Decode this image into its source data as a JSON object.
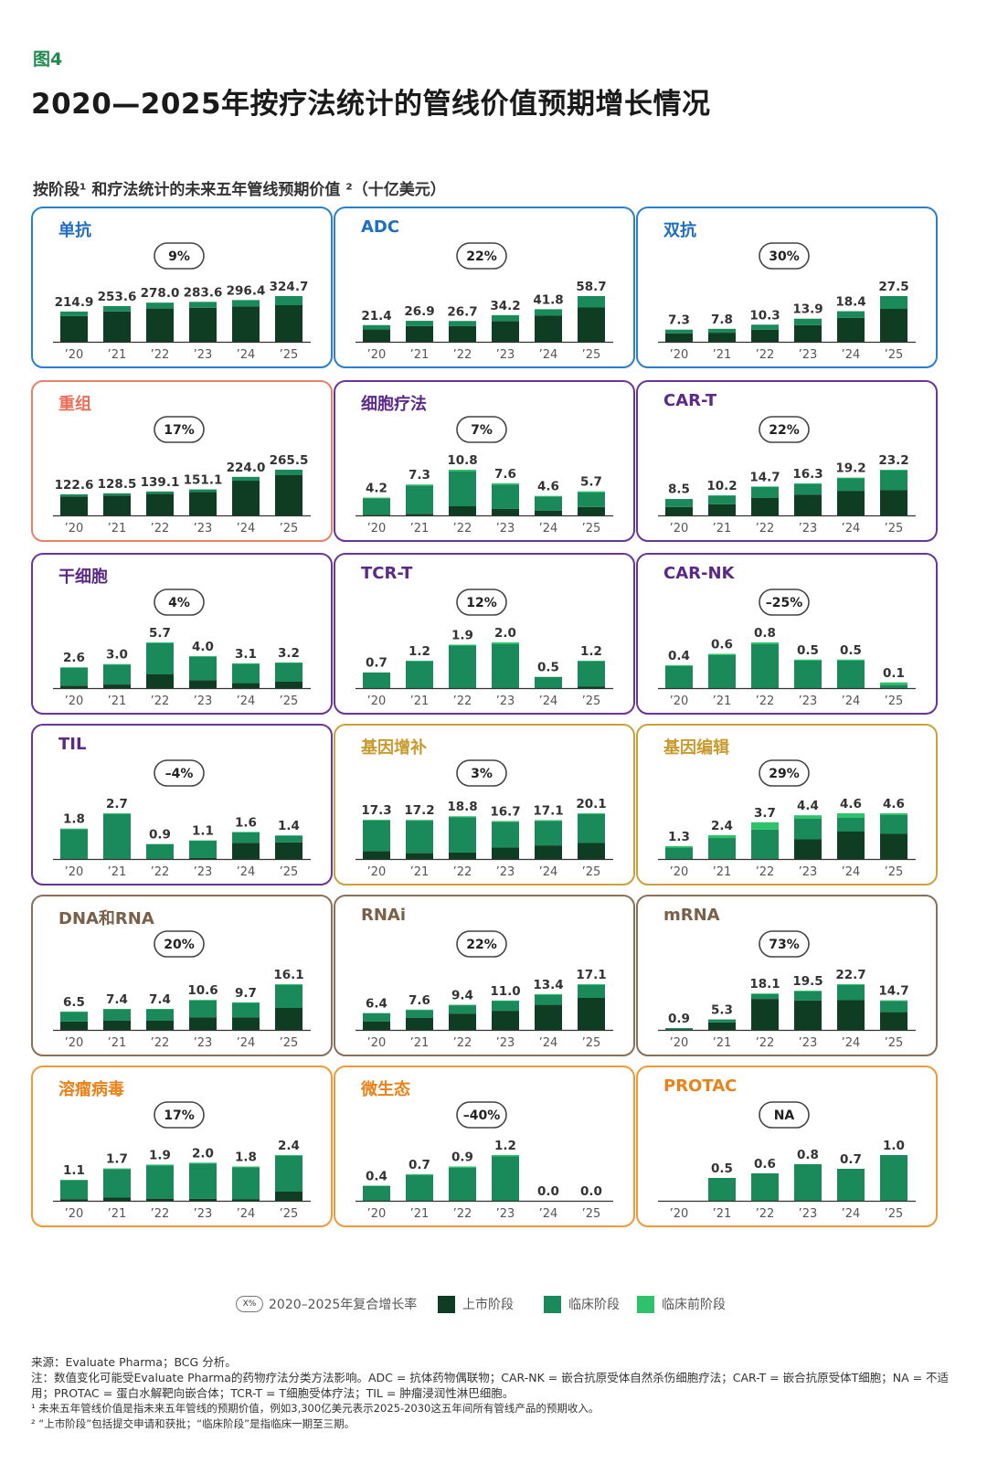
{
  "figure_label": "图4",
  "title": "2020—2025年按疗法统计的管线价值预期增长情况",
  "subtitle": "按阶段¹ 和疗法统计的未来五年管线预期价值 ²（十亿美元）",
  "colors": {
    "marketed": "#0f3d24",
    "clinical": "#1b8a5a",
    "preclinical": "#2ec26a"
  },
  "categories": [
    "’20",
    "’21",
    "’22",
    "’23",
    "’24",
    "’25"
  ],
  "chart_data": [
    {
      "type": "bar",
      "title": "单抗",
      "title_color": "#1f6fbf",
      "border_color": "#2a7fd0",
      "cagr": "9%",
      "values": [
        214.9,
        253.6,
        278.0,
        283.6,
        296.4,
        324.7
      ],
      "labels": [
        "214.9",
        "253.6",
        "278.0",
        "283.6",
        "296.4",
        "324.7"
      ],
      "marketed_share": [
        0.85,
        0.85,
        0.85,
        0.85,
        0.85,
        0.8
      ],
      "clinical_share": [
        0.15,
        0.15,
        0.15,
        0.15,
        0.15,
        0.2
      ]
    },
    {
      "type": "bar",
      "title": "ADC",
      "title_color": "#1f6fbf",
      "border_color": "#2a7fd0",
      "cagr": "22%",
      "values": [
        21.4,
        26.9,
        26.7,
        34.2,
        41.8,
        58.7
      ],
      "labels": [
        "21.4",
        "26.9",
        "26.7",
        "34.2",
        "41.8",
        "58.7"
      ],
      "marketed_share": [
        0.75,
        0.75,
        0.75,
        0.78,
        0.8,
        0.75
      ],
      "clinical_share": [
        0.25,
        0.25,
        0.25,
        0.22,
        0.2,
        0.25
      ]
    },
    {
      "type": "bar",
      "title": "双抗",
      "title_color": "#1f6fbf",
      "border_color": "#2a7fd0",
      "cagr": "30%",
      "values": [
        7.3,
        7.8,
        10.3,
        13.9,
        18.4,
        27.5
      ],
      "labels": [
        "7.3",
        "7.8",
        "10.3",
        "13.9",
        "18.4",
        "27.5"
      ],
      "marketed_share": [
        0.7,
        0.7,
        0.7,
        0.72,
        0.78,
        0.72
      ],
      "clinical_share": [
        0.3,
        0.3,
        0.3,
        0.28,
        0.22,
        0.28
      ]
    },
    {
      "type": "bar",
      "title": "重组",
      "title_color": "#e8705a",
      "border_color": "#e8806a",
      "cagr": "17%",
      "values": [
        122.6,
        128.5,
        139.1,
        151.1,
        224.0,
        265.5
      ],
      "labels": [
        "122.6",
        "128.5",
        "139.1",
        "151.1",
        "224.0",
        "265.5"
      ],
      "marketed_share": [
        0.9,
        0.9,
        0.9,
        0.9,
        0.9,
        0.88
      ],
      "clinical_share": [
        0.1,
        0.1,
        0.1,
        0.1,
        0.1,
        0.12
      ]
    },
    {
      "type": "bar",
      "title": "细胞疗法",
      "title_color": "#5b2a86",
      "border_color": "#6a3596",
      "cagr": "7%",
      "values": [
        4.2,
        7.3,
        10.8,
        7.6,
        4.6,
        5.7
      ],
      "labels": [
        "4.2",
        "7.3",
        "10.8",
        "7.6",
        "4.6",
        "5.7"
      ],
      "marketed_share": [
        0.03,
        0.05,
        0.2,
        0.2,
        0.25,
        0.35
      ],
      "clinical_share": [
        0.94,
        0.92,
        0.76,
        0.76,
        0.71,
        0.6
      ]
    },
    {
      "type": "bar",
      "title": "CAR-T",
      "title_color": "#5b2a86",
      "border_color": "#6a3596",
      "cagr": "22%",
      "values": [
        8.5,
        10.2,
        14.7,
        16.3,
        19.2,
        23.2
      ],
      "labels": [
        "8.5",
        "10.2",
        "14.7",
        "16.3",
        "19.2",
        "23.2"
      ],
      "marketed_share": [
        0.5,
        0.55,
        0.6,
        0.65,
        0.65,
        0.55
      ],
      "clinical_share": [
        0.48,
        0.43,
        0.38,
        0.33,
        0.33,
        0.43
      ]
    },
    {
      "type": "bar",
      "title": "干细胞",
      "title_color": "#5b2a86",
      "border_color": "#6a3596",
      "cagr": "4%",
      "values": [
        2.6,
        3.0,
        5.7,
        4.0,
        3.1,
        3.2
      ],
      "labels": [
        "2.6",
        "3.0",
        "5.7",
        "4.0",
        "3.1",
        "3.2"
      ],
      "marketed_share": [
        0.12,
        0.15,
        0.3,
        0.25,
        0.2,
        0.25
      ],
      "clinical_share": [
        0.86,
        0.83,
        0.68,
        0.73,
        0.78,
        0.73
      ]
    },
    {
      "type": "bar",
      "title": "TCR-T",
      "title_color": "#5b2a86",
      "border_color": "#6a3596",
      "cagr": "12%",
      "values": [
        0.7,
        1.2,
        1.9,
        2.0,
        0.5,
        1.2
      ],
      "labels": [
        "0.7",
        "1.2",
        "1.9",
        "2.0",
        "0.5",
        "1.2"
      ],
      "marketed_share": [
        0,
        0,
        0,
        0,
        0,
        0.05
      ],
      "clinical_share": [
        0.98,
        0.98,
        0.98,
        0.96,
        0.98,
        0.93
      ]
    },
    {
      "type": "bar",
      "title": "CAR-NK",
      "title_color": "#5b2a86",
      "border_color": "#6a3596",
      "cagr": "–25%",
      "values": [
        0.4,
        0.6,
        0.8,
        0.5,
        0.5,
        0.1
      ],
      "labels": [
        "0.4",
        "0.6",
        "0.8",
        "0.5",
        "0.5",
        "0.1"
      ],
      "marketed_share": [
        0,
        0,
        0,
        0,
        0,
        0
      ],
      "clinical_share": [
        0.96,
        0.96,
        0.96,
        0.96,
        0.96,
        0.6
      ]
    },
    {
      "type": "bar",
      "title": "TIL",
      "title_color": "#5b2a86",
      "border_color": "#6a3596",
      "cagr": "–4%",
      "values": [
        1.8,
        2.7,
        0.9,
        1.1,
        1.6,
        1.4
      ],
      "labels": [
        "1.8",
        "2.7",
        "0.9",
        "1.1",
        "1.6",
        "1.4"
      ],
      "marketed_share": [
        0,
        0,
        0,
        0.05,
        0.6,
        0.7
      ],
      "clinical_share": [
        0.98,
        0.98,
        0.98,
        0.93,
        0.38,
        0.28
      ]
    },
    {
      "type": "bar",
      "title": "基因增补",
      "title_color": "#c99a2e",
      "border_color": "#c9a23c",
      "cagr": "3%",
      "values": [
        17.3,
        17.2,
        18.8,
        16.7,
        17.1,
        20.1
      ],
      "labels": [
        "17.3",
        "17.2",
        "18.8",
        "16.7",
        "17.1",
        "20.1"
      ],
      "marketed_share": [
        0.2,
        0.15,
        0.15,
        0.3,
        0.35,
        0.35
      ],
      "clinical_share": [
        0.78,
        0.83,
        0.83,
        0.68,
        0.63,
        0.63
      ]
    },
    {
      "type": "bar",
      "title": "基因编辑",
      "title_color": "#c99a2e",
      "border_color": "#c9a23c",
      "cagr": "29%",
      "values": [
        1.3,
        2.4,
        3.7,
        4.4,
        4.6,
        4.6
      ],
      "labels": [
        "1.3",
        "2.4",
        "3.7",
        "4.4",
        "4.6",
        "4.6"
      ],
      "marketed_share": [
        0,
        0,
        0,
        0.45,
        0.6,
        0.55
      ],
      "clinical_share": [
        0.88,
        0.88,
        0.8,
        0.47,
        0.3,
        0.41
      ]
    },
    {
      "type": "bar",
      "title": "DNA和RNA",
      "title_color": "#7a6048",
      "border_color": "#8a7058",
      "cagr": "20%",
      "values": [
        6.5,
        7.4,
        7.4,
        10.6,
        9.7,
        16.1
      ],
      "labels": [
        "6.5",
        "7.4",
        "7.4",
        "10.6",
        "9.7",
        "16.1"
      ],
      "marketed_share": [
        0.45,
        0.45,
        0.45,
        0.42,
        0.45,
        0.48
      ],
      "clinical_share": [
        0.53,
        0.53,
        0.53,
        0.56,
        0.53,
        0.5
      ]
    },
    {
      "type": "bar",
      "title": "RNAi",
      "title_color": "#7a6048",
      "border_color": "#8a7058",
      "cagr": "22%",
      "values": [
        6.4,
        7.6,
        9.4,
        11.0,
        13.4,
        17.1
      ],
      "labels": [
        "6.4",
        "7.6",
        "9.4",
        "11.0",
        "13.4",
        "17.1"
      ],
      "marketed_share": [
        0.5,
        0.6,
        0.65,
        0.65,
        0.7,
        0.7
      ],
      "clinical_share": [
        0.48,
        0.38,
        0.33,
        0.33,
        0.28,
        0.28
      ]
    },
    {
      "type": "bar",
      "title": "mRNA",
      "title_color": "#7a6048",
      "border_color": "#8a7058",
      "cagr": "73%",
      "values": [
        0.9,
        5.3,
        18.1,
        19.5,
        22.7,
        14.7
      ],
      "labels": [
        "0.9",
        "5.3",
        "18.1",
        "19.5",
        "22.7",
        "14.7"
      ],
      "marketed_share": [
        0.3,
        0.7,
        0.85,
        0.75,
        0.65,
        0.6
      ],
      "clinical_share": [
        0.68,
        0.28,
        0.13,
        0.23,
        0.33,
        0.38
      ]
    },
    {
      "type": "bar",
      "title": "溶瘤病毒",
      "title_color": "#e8821a",
      "border_color": "#ee9a3a",
      "cagr": "17%",
      "values": [
        1.1,
        1.7,
        1.9,
        2.0,
        1.8,
        2.4
      ],
      "labels": [
        "1.1",
        "1.7",
        "1.9",
        "2.0",
        "1.8",
        "2.4"
      ],
      "marketed_share": [
        0.08,
        0.1,
        0.06,
        0.05,
        0.04,
        0.2
      ],
      "clinical_share": [
        0.9,
        0.88,
        0.92,
        0.93,
        0.94,
        0.78
      ]
    },
    {
      "type": "bar",
      "title": "微生态",
      "title_color": "#e8821a",
      "border_color": "#ee9a3a",
      "cagr": "–40%",
      "values": [
        0.4,
        0.7,
        0.9,
        1.2,
        0.0,
        0.0
      ],
      "labels": [
        "0.4",
        "0.7",
        "0.9",
        "1.2",
        "0.0",
        "0.0"
      ],
      "marketed_share": [
        0,
        0,
        0,
        0,
        0,
        0
      ],
      "clinical_share": [
        0.97,
        0.97,
        0.97,
        0.97,
        1,
        1
      ]
    },
    {
      "type": "bar",
      "title": "PROTAC",
      "title_color": "#e8821a",
      "border_color": "#ee9a3a",
      "cagr": "NA",
      "values": [
        0,
        0.5,
        0.6,
        0.8,
        0.7,
        1.0
      ],
      "labels": [
        "",
        "0.5",
        "0.6",
        "0.8",
        "0.7",
        "1.0"
      ],
      "marketed_share": [
        0,
        0,
        0,
        0,
        0,
        0
      ],
      "clinical_share": [
        1,
        1,
        1,
        1,
        1,
        1
      ]
    }
  ],
  "legend": {
    "cagr_pill": "X%",
    "cagr_label": "2020–2025年复合增长率",
    "marketed": "上市阶段",
    "clinical": "临床阶段",
    "preclinical": "临床前阶段"
  },
  "footer": {
    "source": "来源：Evaluate Pharma；BCG 分析。",
    "note": "注：数值变化可能受Evaluate Pharma的药物疗法分类方法影响。ADC = 抗体药物偶联物；CAR-NK = 嵌合抗原受体自然杀伤细胞疗法；CAR-T = 嵌合抗原受体T细胞；NA = 不适用；PROTAC = 蛋白水解靶向嵌合体；TCR-T = T细胞受体疗法；TIL = 肿瘤浸润性淋巴细胞。",
    "fn1": "¹ 未来五年管线价值是指未来五年管线的预期价值，例如3,300亿美元表示2025-2030这五年间所有管线产品的预期收入。",
    "fn2": "² “上市阶段”包括提交申请和获批；“临床阶段”是指临床一期至三期。"
  }
}
